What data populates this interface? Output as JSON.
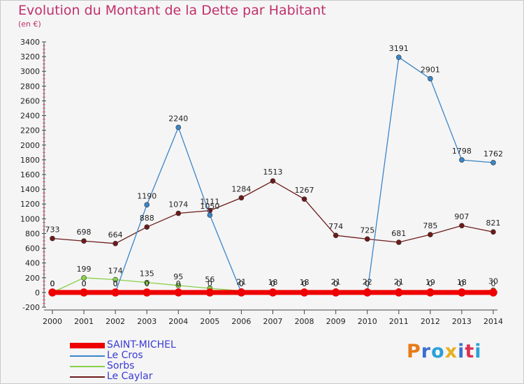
{
  "chart_data": {
    "type": "line",
    "title": "Evolution du Montant de la Dette par Habitant",
    "subtitle": "(en €)",
    "xlabel": "",
    "ylabel": "",
    "x": [
      "2000",
      "2001",
      "2002",
      "2003",
      "2004",
      "2005",
      "2006",
      "2007",
      "2008",
      "2009",
      "2010",
      "2011",
      "2012",
      "2013",
      "2014"
    ],
    "ylim": [
      -200,
      3400
    ],
    "yticks": [
      "-200",
      "0",
      "200",
      "400",
      "600",
      "800",
      "1000",
      "1200",
      "1400",
      "1600",
      "1800",
      "2000",
      "2200",
      "2400",
      "2600",
      "2800",
      "3000",
      "3200",
      "3400"
    ],
    "grid": false,
    "legend_position": "bottom-left",
    "series": [
      {
        "name": "SAINT-MICHEL",
        "color": "#ee0000",
        "values": [
          0,
          0,
          0,
          0,
          0,
          0,
          0,
          0,
          0,
          0,
          0,
          0,
          0,
          0,
          0
        ]
      },
      {
        "name": "Le Cros",
        "color": "#3a85c8",
        "values": [
          0,
          0,
          0,
          1190,
          2240,
          1050,
          0,
          0,
          0,
          0,
          0,
          3191,
          2901,
          1798,
          1762
        ]
      },
      {
        "name": "Sorbs",
        "color": "#88d04a",
        "values": [
          0,
          199,
          174,
          135,
          95,
          56,
          21,
          18,
          18,
          21,
          22,
          21,
          19,
          18,
          30
        ]
      },
      {
        "name": "Le Caylar",
        "color": "#6e1a1a",
        "values": [
          733,
          698,
          664,
          888,
          1074,
          1111,
          1284,
          1513,
          1267,
          774,
          725,
          681,
          785,
          907,
          821
        ]
      }
    ]
  },
  "logo": {
    "text": "Proxiti",
    "colors": [
      "#e87a1a",
      "#3a6fd0",
      "#2aa0d8",
      "#e8b020",
      "#3a6fd0",
      "#e03050",
      "#2aa0d8"
    ]
  }
}
